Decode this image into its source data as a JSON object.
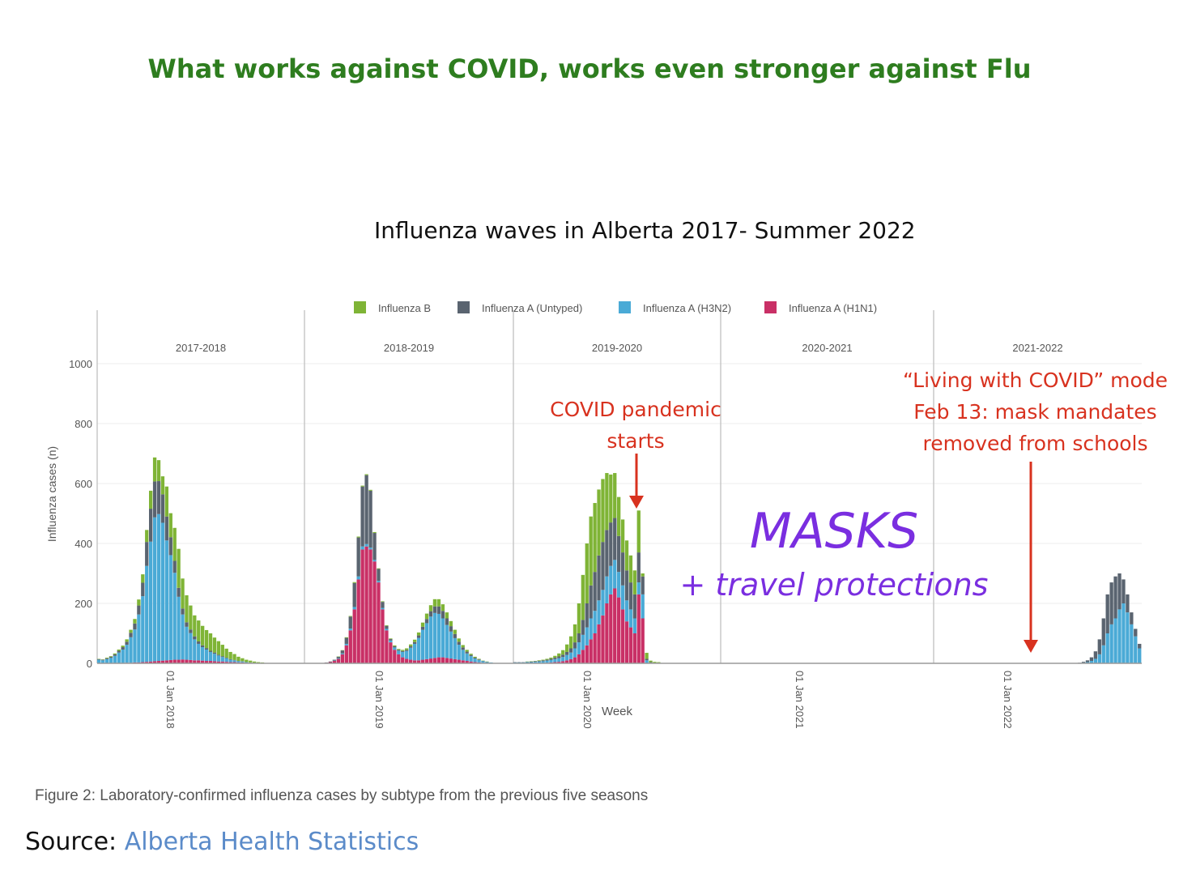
{
  "headline": "What works against COVID, works even stronger against Flu",
  "subtitle": "Influenza waves in Alberta 2017- Summer 2022",
  "caption": "Figure 2: Laboratory-confirmed influenza cases by subtype from the previous five seasons",
  "source": {
    "label": "Source:",
    "link_text": "Alberta Health Statistics"
  },
  "annotations": {
    "covid_start": [
      "COVID pandemic",
      "starts"
    ],
    "living_with_covid": [
      "“Living with COVID” mode",
      "Feb 13: mask mandates",
      "removed from schools"
    ],
    "masks": "MASKS",
    "travel": "+ travel protections"
  },
  "colors": {
    "headline": "#2e7d1f",
    "annotation_red": "#d8321f",
    "masks_purple": "#7a2ee0",
    "influenza_b": "#7fb436",
    "influenza_a_untyped": "#5a6470",
    "influenza_a_h3n2": "#4aaad6",
    "influenza_a_h1n1": "#c93066"
  },
  "chart_data": {
    "type": "bar",
    "stacked": true,
    "xlabel": "Week",
    "ylabel": "Influenza cases (n)",
    "ylim": [
      0,
      1150
    ],
    "yticks": [
      0,
      200,
      400,
      600,
      800,
      1000
    ],
    "grid": true,
    "legend_position": "top",
    "x_tick_labels": [
      "01 Jan 2018",
      "01 Jan 2019",
      "01 Jan 2020",
      "01 Jan 2021",
      "01 Jan 2022"
    ],
    "series_names": [
      "Influenza B",
      "Influenza A (Untyped)",
      "Influenza A (H3N2)",
      "Influenza A (H1N1)"
    ],
    "panels": [
      {
        "season": "2017-2018",
        "h1n1": [
          0,
          0,
          0,
          0,
          0,
          1,
          1,
          2,
          2,
          3,
          3,
          4,
          5,
          6,
          7,
          8,
          9,
          10,
          11,
          12,
          12,
          13,
          12,
          11,
          10,
          10,
          9,
          8,
          8,
          7,
          6,
          6,
          5,
          4,
          4,
          3,
          3,
          2,
          2,
          1,
          1,
          1,
          0,
          0,
          0,
          0,
          0,
          0,
          0,
          0,
          0,
          0
        ],
        "h3n2": [
          12,
          10,
          14,
          18,
          25,
          35,
          45,
          60,
          85,
          110,
          160,
          220,
          320,
          400,
          480,
          490,
          460,
          400,
          350,
          290,
          210,
          150,
          110,
          90,
          70,
          55,
          45,
          38,
          30,
          25,
          20,
          15,
          12,
          8,
          6,
          4,
          3,
          2,
          1,
          1,
          0,
          0,
          0,
          0,
          0,
          0,
          0,
          0,
          0,
          0,
          0,
          0
        ],
        "untyped": [
          2,
          2,
          3,
          4,
          5,
          6,
          8,
          10,
          15,
          20,
          30,
          45,
          80,
          110,
          120,
          110,
          95,
          80,
          60,
          40,
          30,
          20,
          15,
          12,
          10,
          8,
          6,
          5,
          4,
          4,
          3,
          3,
          2,
          2,
          1,
          1,
          1,
          0,
          0,
          0,
          0,
          0,
          0,
          0,
          0,
          0,
          0,
          0,
          0,
          0,
          0,
          0
        ],
        "b": [
          1,
          1,
          2,
          2,
          3,
          4,
          5,
          8,
          10,
          15,
          20,
          28,
          40,
          60,
          80,
          70,
          60,
          100,
          80,
          110,
          130,
          100,
          90,
          80,
          70,
          70,
          65,
          60,
          58,
          50,
          45,
          38,
          30,
          24,
          20,
          14,
          10,
          8,
          6,
          4,
          3,
          2,
          1,
          1,
          0,
          0,
          0,
          0,
          0,
          0,
          0,
          0
        ]
      },
      {
        "season": "2018-2019",
        "h1n1": [
          0,
          0,
          0,
          0,
          1,
          2,
          4,
          8,
          15,
          30,
          60,
          110,
          180,
          280,
          380,
          390,
          380,
          340,
          270,
          180,
          110,
          70,
          45,
          30,
          20,
          15,
          12,
          10,
          10,
          12,
          14,
          16,
          18,
          20,
          20,
          18,
          16,
          14,
          12,
          10,
          8,
          6,
          4,
          3,
          2,
          1,
          1,
          0,
          0,
          0,
          0,
          0
        ],
        "h3n2": [
          0,
          0,
          0,
          0,
          0,
          0,
          0,
          1,
          2,
          3,
          5,
          6,
          8,
          10,
          10,
          8,
          6,
          5,
          5,
          5,
          5,
          6,
          8,
          12,
          18,
          26,
          40,
          55,
          75,
          100,
          120,
          140,
          150,
          145,
          130,
          110,
          90,
          70,
          50,
          35,
          25,
          18,
          12,
          8,
          5,
          3,
          2,
          1,
          1,
          0,
          0,
          0
        ],
        "untyped": [
          0,
          0,
          0,
          0,
          0,
          1,
          2,
          3,
          5,
          10,
          20,
          40,
          80,
          130,
          200,
          230,
          190,
          90,
          40,
          20,
          10,
          5,
          4,
          3,
          3,
          4,
          5,
          6,
          8,
          10,
          14,
          18,
          22,
          25,
          25,
          22,
          18,
          14,
          10,
          8,
          6,
          4,
          3,
          2,
          1,
          1,
          0,
          0,
          0,
          0,
          0,
          0
        ],
        "b": [
          0,
          0,
          0,
          0,
          0,
          0,
          0,
          0,
          1,
          1,
          2,
          2,
          3,
          3,
          3,
          3,
          3,
          3,
          2,
          2,
          2,
          2,
          3,
          3,
          4,
          5,
          6,
          8,
          10,
          14,
          18,
          20,
          24,
          24,
          22,
          20,
          17,
          14,
          11,
          8,
          6,
          4,
          3,
          2,
          1,
          1,
          0,
          0,
          0,
          0,
          0,
          0
        ]
      },
      {
        "season": "2019-2020",
        "h1n1": [
          0,
          0,
          0,
          0,
          0,
          0,
          1,
          1,
          2,
          3,
          4,
          5,
          7,
          10,
          14,
          20,
          30,
          45,
          60,
          80,
          100,
          130,
          160,
          200,
          230,
          250,
          220,
          180,
          140,
          120,
          100,
          230,
          150,
          0,
          0,
          0,
          0,
          0,
          0,
          0,
          0,
          0,
          0,
          0,
          0,
          0,
          0,
          0,
          0,
          0,
          0,
          0
        ],
        "h3n2": [
          3,
          3,
          3,
          4,
          4,
          5,
          5,
          6,
          7,
          8,
          10,
          12,
          14,
          18,
          22,
          30,
          40,
          50,
          60,
          70,
          75,
          80,
          85,
          90,
          95,
          95,
          85,
          80,
          70,
          60,
          50,
          40,
          80,
          10,
          2,
          1,
          1,
          0,
          0,
          0,
          0,
          0,
          0,
          0,
          0,
          0,
          0,
          0,
          0,
          0,
          0,
          0
        ],
        "untyped": [
          1,
          1,
          1,
          1,
          2,
          2,
          2,
          3,
          3,
          4,
          5,
          6,
          8,
          10,
          14,
          20,
          30,
          50,
          80,
          110,
          130,
          150,
          160,
          155,
          145,
          140,
          120,
          110,
          100,
          90,
          80,
          100,
          60,
          5,
          2,
          1,
          1,
          0,
          0,
          0,
          0,
          0,
          0,
          0,
          0,
          0,
          0,
          0,
          0,
          0,
          0,
          0
        ],
        "b": [
          0,
          0,
          0,
          1,
          1,
          1,
          2,
          2,
          3,
          4,
          6,
          10,
          15,
          25,
          40,
          60,
          100,
          150,
          200,
          230,
          230,
          220,
          210,
          190,
          160,
          150,
          130,
          110,
          100,
          90,
          80,
          140,
          10,
          20,
          5,
          3,
          2,
          1,
          1,
          1,
          0,
          0,
          0,
          0,
          0,
          0,
          0,
          0,
          0,
          0,
          0,
          0
        ]
      },
      {
        "season": "2020-2021",
        "h1n1": [
          0,
          0,
          0,
          0,
          0,
          0,
          0,
          0,
          0,
          0,
          0,
          0,
          0,
          0,
          0,
          0,
          0,
          0,
          0,
          0,
          0,
          0,
          0,
          0,
          0,
          0,
          0,
          0,
          0,
          0,
          0,
          0,
          0,
          0,
          0,
          0,
          0,
          0,
          0,
          0,
          0,
          0,
          0,
          0,
          0,
          0,
          0,
          0,
          0,
          0,
          0,
          0
        ],
        "h3n2": [
          0,
          0,
          0,
          0,
          0,
          0,
          0,
          0,
          0,
          0,
          0,
          0,
          0,
          0,
          0,
          0,
          0,
          0,
          0,
          0,
          0,
          0,
          0,
          0,
          0,
          0,
          0,
          0,
          0,
          0,
          0,
          0,
          0,
          0,
          0,
          0,
          0,
          0,
          0,
          0,
          0,
          0,
          0,
          0,
          0,
          0,
          0,
          0,
          0,
          0,
          0,
          0
        ],
        "untyped": [
          0,
          0,
          0,
          0,
          0,
          0,
          0,
          0,
          0,
          0,
          0,
          0,
          0,
          0,
          0,
          0,
          0,
          0,
          0,
          0,
          0,
          0,
          0,
          0,
          0,
          0,
          0,
          0,
          0,
          0,
          0,
          0,
          0,
          0,
          0,
          0,
          0,
          0,
          0,
          0,
          0,
          0,
          0,
          0,
          0,
          0,
          0,
          0,
          0,
          0,
          0,
          0
        ],
        "b": [
          0,
          0,
          0,
          0,
          0,
          0,
          0,
          0,
          0,
          0,
          0,
          0,
          0,
          0,
          0,
          0,
          0,
          0,
          0,
          0,
          0,
          0,
          0,
          0,
          0,
          0,
          0,
          0,
          0,
          0,
          0,
          0,
          0,
          0,
          0,
          0,
          0,
          0,
          0,
          0,
          0,
          0,
          0,
          0,
          0,
          0,
          0,
          0,
          0,
          0,
          0,
          0
        ]
      },
      {
        "season": "2021-2022",
        "h1n1": [
          0,
          0,
          0,
          0,
          0,
          0,
          0,
          0,
          0,
          0,
          0,
          0,
          0,
          0,
          0,
          0,
          0,
          0,
          0,
          0,
          0,
          0,
          0,
          0,
          0,
          0,
          0,
          0,
          0,
          0,
          0,
          0,
          0,
          0,
          0,
          0,
          0,
          0,
          0,
          0,
          0,
          0,
          0,
          0,
          0,
          0,
          0,
          0,
          0,
          0,
          0,
          0
        ],
        "h3n2": [
          0,
          0,
          0,
          0,
          0,
          0,
          0,
          0,
          0,
          0,
          0,
          0,
          0,
          0,
          0,
          0,
          0,
          0,
          0,
          0,
          0,
          0,
          0,
          0,
          0,
          0,
          0,
          0,
          0,
          0,
          0,
          0,
          0,
          0,
          0,
          0,
          1,
          2,
          4,
          8,
          15,
          30,
          60,
          100,
          130,
          150,
          180,
          200,
          170,
          130,
          90,
          50
        ],
        "untyped": [
          0,
          0,
          0,
          0,
          0,
          0,
          0,
          0,
          0,
          0,
          0,
          0,
          0,
          0,
          0,
          0,
          0,
          0,
          0,
          0,
          0,
          0,
          0,
          0,
          0,
          0,
          0,
          0,
          0,
          0,
          0,
          0,
          0,
          0,
          0,
          0,
          1,
          3,
          6,
          12,
          25,
          50,
          90,
          130,
          140,
          140,
          120,
          80,
          60,
          40,
          25,
          15
        ],
        "b": [
          0,
          0,
          0,
          0,
          0,
          0,
          0,
          0,
          0,
          0,
          0,
          0,
          0,
          0,
          0,
          0,
          0,
          0,
          0,
          0,
          0,
          0,
          0,
          0,
          0,
          0,
          0,
          0,
          0,
          0,
          0,
          0,
          0,
          0,
          0,
          0,
          0,
          0,
          0,
          0,
          0,
          0,
          0,
          0,
          0,
          0,
          0,
          0,
          0,
          0,
          0,
          0
        ]
      }
    ]
  }
}
